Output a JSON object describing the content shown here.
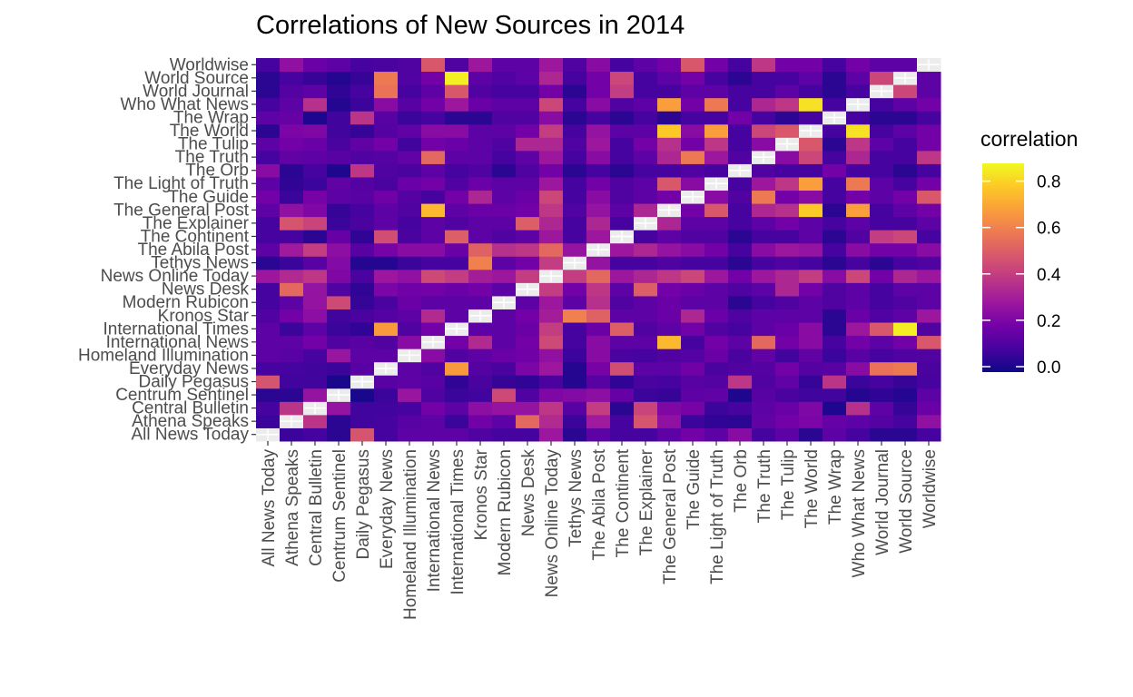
{
  "title": "Correlations of New Sources in 2014",
  "legend": {
    "title": "correlation",
    "ticks": [
      "0.0",
      "0.2",
      "0.4",
      "0.6",
      "0.8"
    ],
    "placement": "right",
    "colorscale": "plasma",
    "colors": [
      "#0d0887",
      "#47039f",
      "#7301a8",
      "#9c179e",
      "#bd3786",
      "#d8576b",
      "#ed7953",
      "#fa9e3b",
      "#fdc926",
      "#f0f921"
    ],
    "range": [
      0,
      0.9
    ]
  },
  "chart_data": {
    "type": "heatmap",
    "title": "Correlations of New Sources in 2014",
    "xlabel": "",
    "ylabel": "",
    "value_label": "correlation",
    "diagonal_color": "#ececec",
    "categories": [
      "All News Today",
      "Athena Speaks",
      "Central Bulletin",
      "Centrum Sentinel",
      "Daily Pegasus",
      "Everyday News",
      "Homeland Illumination",
      "International News",
      "International Times",
      "Kronos Star",
      "Modern Rubicon",
      "News Desk",
      "News Online Today",
      "Tethys News",
      "The Abila Post",
      "The Continent",
      "The Explainer",
      "The General Post",
      "The Guide",
      "The Light of Truth",
      "The Orb",
      "The Truth",
      "The Tulip",
      "The World",
      "The Wrap",
      "Who What News",
      "World Journal",
      "World Source",
      "Worldwise"
    ],
    "grid": false,
    "values": [
      [
        null,
        0.08,
        0.1,
        0.05,
        0.49,
        0.1,
        0.15,
        0.15,
        0.15,
        0.12,
        0.1,
        0.1,
        0.3,
        0.05,
        0.15,
        0.1,
        0.1,
        0.15,
        0.2,
        0.15,
        0.25,
        0.1,
        0.15,
        0.05,
        0.15,
        0.1,
        0.05,
        0.05,
        0.1
      ],
      [
        0.08,
        null,
        0.39,
        0.05,
        0.09,
        0.1,
        0.14,
        0.15,
        0.08,
        0.2,
        0.15,
        0.55,
        0.36,
        0.08,
        0.31,
        0.1,
        0.49,
        0.27,
        0.08,
        0.06,
        0.05,
        0.16,
        0.2,
        0.22,
        0.17,
        0.15,
        0.13,
        0.1,
        0.27
      ],
      [
        0.1,
        0.39,
        null,
        0.28,
        0.09,
        0.09,
        0.1,
        0.2,
        0.15,
        0.26,
        0.28,
        0.28,
        0.4,
        0.14,
        0.42,
        0.05,
        0.44,
        0.23,
        0.21,
        0.08,
        0.1,
        0.15,
        0.18,
        0.23,
        0.03,
        0.38,
        0.15,
        0.07,
        0.18
      ],
      [
        0.05,
        0.05,
        0.28,
        null,
        0.02,
        0.08,
        0.29,
        0.12,
        0.08,
        0.09,
        0.46,
        0.12,
        0.23,
        0.24,
        0.26,
        0.17,
        0.08,
        0.07,
        0.15,
        0.16,
        0.03,
        0.14,
        0.11,
        0.09,
        0.09,
        0.04,
        0.06,
        0.04,
        0.15
      ],
      [
        0.49,
        0.09,
        0.09,
        0.02,
        null,
        0.14,
        0.15,
        0.14,
        0.06,
        0.11,
        0.07,
        0.06,
        0.11,
        0.04,
        0.14,
        0.06,
        0.11,
        0.1,
        0.14,
        0.13,
        0.4,
        0.12,
        0.16,
        0.07,
        0.39,
        0.08,
        0.1,
        0.07,
        0.1
      ],
      [
        0.1,
        0.1,
        0.09,
        0.08,
        0.14,
        null,
        0.15,
        0.12,
        0.69,
        0.13,
        0.11,
        0.22,
        0.3,
        0.04,
        0.21,
        0.47,
        0.15,
        0.15,
        0.19,
        0.11,
        0.12,
        0.13,
        0.2,
        0.13,
        0.14,
        0.25,
        0.58,
        0.6,
        0.11
      ],
      [
        0.15,
        0.14,
        0.1,
        0.29,
        0.15,
        0.15,
        null,
        0.25,
        0.12,
        0.15,
        0.18,
        0.19,
        0.27,
        0.08,
        0.25,
        0.11,
        0.1,
        0.12,
        0.13,
        0.18,
        0.11,
        0.16,
        0.09,
        0.16,
        0.08,
        0.14,
        0.1,
        0.12,
        0.12
      ],
      [
        0.15,
        0.15,
        0.2,
        0.12,
        0.14,
        0.12,
        0.25,
        null,
        0.2,
        0.36,
        0.15,
        0.2,
        0.46,
        0.1,
        0.25,
        0.15,
        0.15,
        0.76,
        0.1,
        0.2,
        0.15,
        0.55,
        0.2,
        0.25,
        0.1,
        0.2,
        0.15,
        0.2,
        0.5
      ],
      [
        0.15,
        0.08,
        0.15,
        0.08,
        0.06,
        0.69,
        0.12,
        0.2,
        null,
        0.15,
        0.15,
        0.18,
        0.42,
        0.1,
        0.18,
        0.52,
        0.12,
        0.15,
        0.2,
        0.12,
        0.1,
        0.15,
        0.18,
        0.25,
        0.05,
        0.3,
        0.5,
        0.88,
        0.12
      ],
      [
        0.12,
        0.2,
        0.26,
        0.09,
        0.11,
        0.13,
        0.15,
        0.36,
        0.15,
        null,
        0.15,
        0.2,
        0.32,
        0.62,
        0.53,
        0.15,
        0.15,
        0.18,
        0.35,
        0.18,
        0.12,
        0.15,
        0.15,
        0.15,
        0.05,
        0.18,
        0.12,
        0.15,
        0.3
      ],
      [
        0.1,
        0.15,
        0.28,
        0.46,
        0.07,
        0.11,
        0.18,
        0.15,
        0.15,
        0.15,
        null,
        0.15,
        0.3,
        0.15,
        0.38,
        0.12,
        0.15,
        0.18,
        0.15,
        0.15,
        0.05,
        0.1,
        0.12,
        0.15,
        0.12,
        0.15,
        0.1,
        0.12,
        0.15
      ],
      [
        0.1,
        0.55,
        0.28,
        0.12,
        0.06,
        0.22,
        0.19,
        0.2,
        0.18,
        0.2,
        0.15,
        null,
        0.42,
        0.2,
        0.4,
        0.15,
        0.52,
        0.2,
        0.18,
        0.15,
        0.12,
        0.15,
        0.35,
        0.2,
        0.12,
        0.15,
        0.1,
        0.15,
        0.15
      ],
      [
        0.3,
        0.36,
        0.4,
        0.23,
        0.11,
        0.3,
        0.27,
        0.46,
        0.42,
        0.32,
        0.3,
        0.42,
        null,
        0.42,
        0.55,
        0.3,
        0.35,
        0.4,
        0.45,
        0.3,
        0.2,
        0.3,
        0.35,
        0.42,
        0.25,
        0.45,
        0.2,
        0.35,
        0.3
      ],
      [
        0.05,
        0.08,
        0.14,
        0.24,
        0.04,
        0.04,
        0.08,
        0.1,
        0.1,
        0.62,
        0.15,
        0.2,
        0.42,
        null,
        0.28,
        0.1,
        0.1,
        0.12,
        0.1,
        0.1,
        0.05,
        0.1,
        0.12,
        0.1,
        0.05,
        0.1,
        0.05,
        0.1,
        0.12
      ],
      [
        0.15,
        0.31,
        0.42,
        0.26,
        0.14,
        0.21,
        0.25,
        0.25,
        0.18,
        0.53,
        0.38,
        0.4,
        0.55,
        0.28,
        null,
        0.3,
        0.35,
        0.28,
        0.25,
        0.2,
        0.1,
        0.25,
        0.3,
        0.28,
        0.1,
        0.25,
        0.2,
        0.2,
        0.25
      ],
      [
        0.1,
        0.1,
        0.05,
        0.17,
        0.06,
        0.47,
        0.11,
        0.15,
        0.52,
        0.15,
        0.12,
        0.15,
        0.3,
        0.1,
        0.3,
        null,
        0.1,
        0.15,
        0.12,
        0.12,
        0.05,
        0.1,
        0.1,
        0.15,
        0.05,
        0.12,
        0.42,
        0.45,
        0.1
      ],
      [
        0.1,
        0.49,
        0.44,
        0.08,
        0.11,
        0.15,
        0.1,
        0.15,
        0.12,
        0.15,
        0.15,
        0.52,
        0.35,
        0.1,
        0.35,
        0.1,
        null,
        0.35,
        0.15,
        0.15,
        0.1,
        0.15,
        0.2,
        0.15,
        0.1,
        0.15,
        0.1,
        0.1,
        0.15
      ],
      [
        0.15,
        0.27,
        0.23,
        0.07,
        0.1,
        0.15,
        0.12,
        0.76,
        0.15,
        0.18,
        0.18,
        0.2,
        0.4,
        0.12,
        0.28,
        0.15,
        0.35,
        null,
        0.2,
        0.5,
        0.1,
        0.35,
        0.38,
        0.8,
        0.05,
        0.7,
        0.1,
        0.15,
        0.2
      ],
      [
        0.2,
        0.08,
        0.21,
        0.15,
        0.14,
        0.19,
        0.13,
        0.1,
        0.2,
        0.35,
        0.15,
        0.18,
        0.45,
        0.1,
        0.25,
        0.12,
        0.15,
        0.2,
        null,
        0.25,
        0.12,
        0.6,
        0.2,
        0.25,
        0.1,
        0.2,
        0.15,
        0.2,
        0.5
      ],
      [
        0.15,
        0.06,
        0.08,
        0.16,
        0.13,
        0.11,
        0.18,
        0.2,
        0.12,
        0.18,
        0.15,
        0.15,
        0.3,
        0.1,
        0.2,
        0.12,
        0.15,
        0.5,
        0.25,
        null,
        0.1,
        0.3,
        0.4,
        0.7,
        0.1,
        0.6,
        0.15,
        0.1,
        0.2
      ],
      [
        0.25,
        0.05,
        0.1,
        0.03,
        0.4,
        0.12,
        0.11,
        0.15,
        0.1,
        0.12,
        0.05,
        0.12,
        0.2,
        0.05,
        0.1,
        0.05,
        0.1,
        0.1,
        0.12,
        0.1,
        null,
        0.12,
        0.1,
        0.1,
        0.2,
        0.1,
        0.1,
        0.05,
        0.1
      ],
      [
        0.1,
        0.16,
        0.15,
        0.14,
        0.12,
        0.13,
        0.16,
        0.55,
        0.15,
        0.15,
        0.1,
        0.15,
        0.3,
        0.1,
        0.25,
        0.1,
        0.15,
        0.35,
        0.6,
        0.3,
        0.12,
        null,
        0.25,
        0.45,
        0.1,
        0.35,
        0.1,
        0.1,
        0.4
      ],
      [
        0.15,
        0.2,
        0.18,
        0.11,
        0.16,
        0.2,
        0.09,
        0.2,
        0.18,
        0.15,
        0.12,
        0.35,
        0.35,
        0.12,
        0.3,
        0.1,
        0.2,
        0.38,
        0.2,
        0.4,
        0.1,
        0.25,
        null,
        0.5,
        0.05,
        0.4,
        0.15,
        0.1,
        0.2
      ],
      [
        0.05,
        0.22,
        0.23,
        0.09,
        0.07,
        0.13,
        0.16,
        0.25,
        0.25,
        0.15,
        0.15,
        0.2,
        0.42,
        0.1,
        0.28,
        0.15,
        0.15,
        0.8,
        0.25,
        0.7,
        0.1,
        0.45,
        0.5,
        null,
        0.1,
        0.85,
        0.1,
        0.15,
        0.2
      ],
      [
        0.15,
        0.17,
        0.03,
        0.09,
        0.39,
        0.14,
        0.08,
        0.1,
        0.05,
        0.05,
        0.12,
        0.12,
        0.25,
        0.05,
        0.1,
        0.05,
        0.1,
        0.05,
        0.1,
        0.1,
        0.2,
        0.1,
        0.05,
        0.1,
        null,
        0.1,
        0.05,
        0.05,
        0.1
      ],
      [
        0.1,
        0.15,
        0.38,
        0.04,
        0.08,
        0.25,
        0.14,
        0.2,
        0.3,
        0.18,
        0.15,
        0.15,
        0.45,
        0.1,
        0.25,
        0.12,
        0.15,
        0.7,
        0.2,
        0.6,
        0.1,
        0.35,
        0.4,
        0.85,
        0.1,
        null,
        0.1,
        0.15,
        0.2
      ],
      [
        0.05,
        0.13,
        0.15,
        0.06,
        0.1,
        0.58,
        0.1,
        0.15,
        0.5,
        0.12,
        0.1,
        0.1,
        0.2,
        0.05,
        0.2,
        0.42,
        0.1,
        0.1,
        0.15,
        0.15,
        0.1,
        0.1,
        0.15,
        0.1,
        0.05,
        0.1,
        null,
        0.45,
        0.15
      ],
      [
        0.05,
        0.1,
        0.07,
        0.04,
        0.07,
        0.6,
        0.12,
        0.2,
        0.88,
        0.15,
        0.12,
        0.15,
        0.35,
        0.1,
        0.2,
        0.45,
        0.1,
        0.15,
        0.2,
        0.1,
        0.05,
        0.1,
        0.1,
        0.15,
        0.05,
        0.15,
        0.45,
        null,
        0.15
      ],
      [
        0.1,
        0.27,
        0.18,
        0.15,
        0.1,
        0.11,
        0.12,
        0.5,
        0.12,
        0.3,
        0.15,
        0.15,
        0.3,
        0.12,
        0.25,
        0.1,
        0.15,
        0.2,
        0.5,
        0.2,
        0.1,
        0.4,
        0.2,
        0.2,
        0.1,
        0.2,
        0.15,
        0.15,
        null
      ]
    ]
  }
}
